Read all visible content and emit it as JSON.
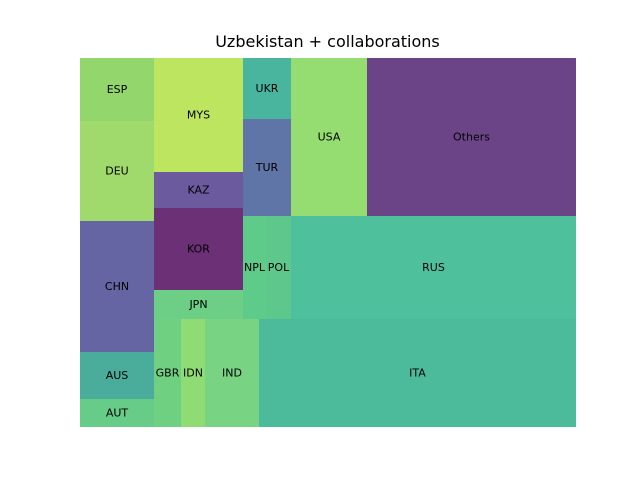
{
  "chart_data": {
    "type": "treemap",
    "title": "Uzbekistan + collaborations",
    "cells": [
      {
        "label": "ESP",
        "color": "#93d76c"
      },
      {
        "label": "DEU",
        "color": "#a0da6c"
      },
      {
        "label": "CHN",
        "color": "#6665a4"
      },
      {
        "label": "AUS",
        "color": "#4aad9c"
      },
      {
        "label": "AUT",
        "color": "#66cc88"
      },
      {
        "label": "MYS",
        "color": "#bde560"
      },
      {
        "label": "KAZ",
        "color": "#6b5b9e"
      },
      {
        "label": "KOR",
        "color": "#6b3075"
      },
      {
        "label": "JPN",
        "color": "#6ccf85"
      },
      {
        "label": "GBR",
        "color": "#6fd082"
      },
      {
        "label": "IDN",
        "color": "#90dc74"
      },
      {
        "label": "IND",
        "color": "#78d382"
      },
      {
        "label": "UKR",
        "color": "#4ab59e"
      },
      {
        "label": "TUR",
        "color": "#5f74a7"
      },
      {
        "label": "NPL",
        "color": "#5ecb8a"
      },
      {
        "label": "POL",
        "color": "#5ec88c"
      },
      {
        "label": "USA",
        "color": "#95dc71"
      },
      {
        "label": "Others",
        "color": "#6b4488"
      },
      {
        "label": "RUS",
        "color": "#4ec09c"
      },
      {
        "label": "ITA",
        "color": "#4cbb9c"
      }
    ]
  }
}
